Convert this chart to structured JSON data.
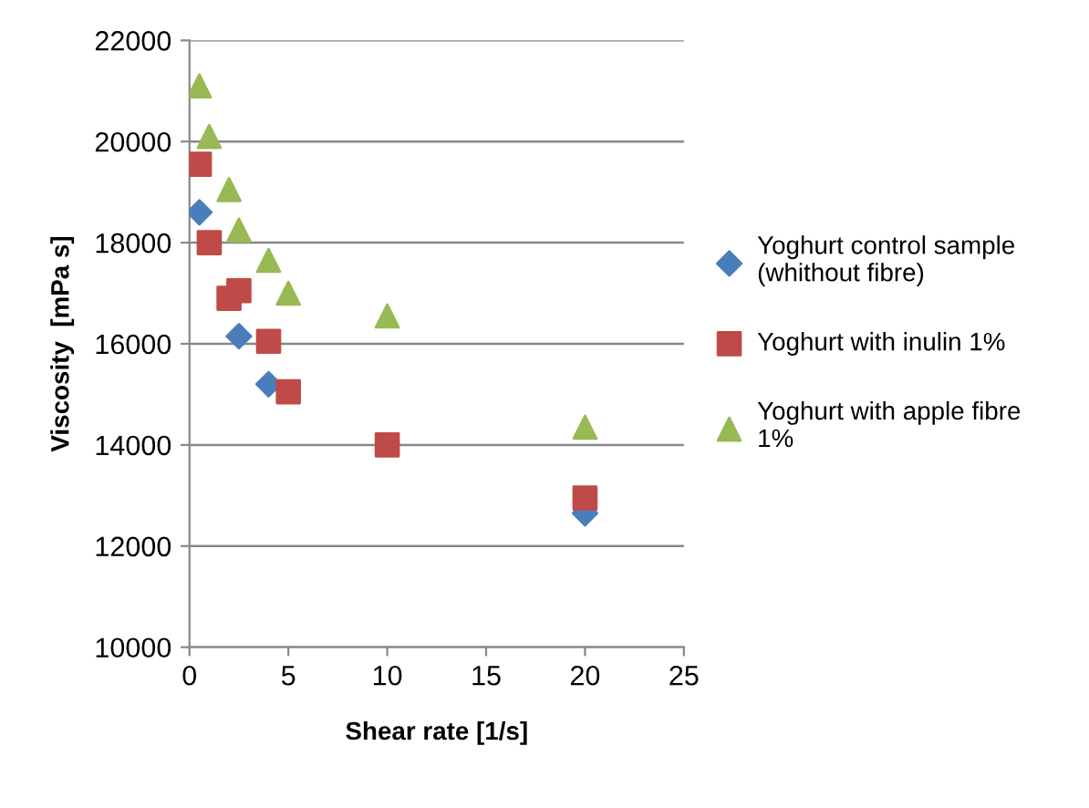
{
  "chart_data": {
    "type": "scatter",
    "xlabel": "Shear rate [1/s]",
    "ylabel": "Viscosity  [mPa s]",
    "xlim": [
      0,
      25
    ],
    "xticks": [
      0,
      5,
      10,
      15,
      20,
      25
    ],
    "ylim": [
      10000,
      22000
    ],
    "yticks": [
      10000,
      12000,
      14000,
      16000,
      18000,
      20000,
      22000
    ],
    "grid": "y",
    "legend": "right",
    "series": [
      {
        "name": "Yoghurt control sample (whithout fibre)",
        "color": "#4a7ebb",
        "marker": "diamond",
        "x": [
          0.5,
          2.5,
          4,
          20
        ],
        "values": [
          18600,
          16150,
          15200,
          12650
        ]
      },
      {
        "name": "Yoghurt with inulin 1%",
        "color": "#be4b48",
        "marker": "square",
        "x": [
          0.5,
          1,
          2,
          2.5,
          4,
          5,
          10,
          20
        ],
        "values": [
          19550,
          18000,
          16900,
          17050,
          16050,
          15050,
          14000,
          12950
        ]
      },
      {
        "name": "Yoghurt with apple fibre 1%",
        "color": "#98b954",
        "marker": "triangle",
        "x": [
          0.5,
          1,
          2,
          2.5,
          4,
          5,
          10,
          20
        ],
        "values": [
          21100,
          20100,
          19050,
          18250,
          17650,
          17000,
          16550,
          14350
        ]
      }
    ]
  }
}
